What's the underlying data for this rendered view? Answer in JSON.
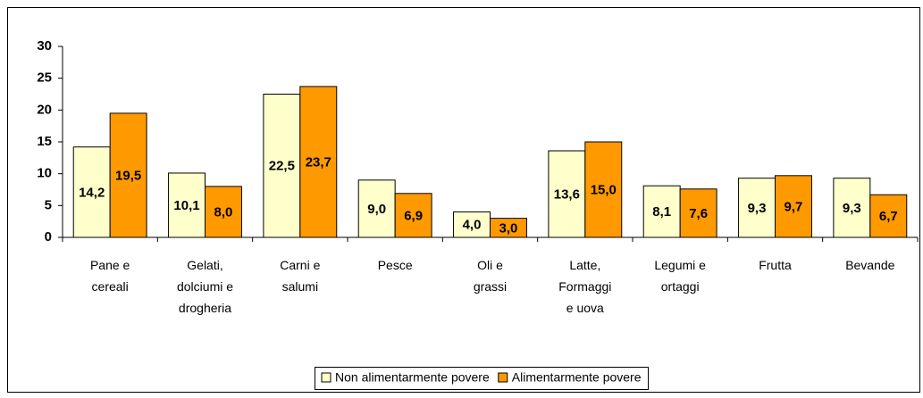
{
  "chart_data": {
    "type": "bar",
    "categories": [
      "Pane e cereali",
      "Gelati, dolciumi e drogheria",
      "Carni e salumi",
      "Pesce",
      "Oli e grassi",
      "Latte, Formaggi e uova",
      "Legumi e ortaggi",
      "Frutta",
      "Bevande"
    ],
    "series": [
      {
        "name": "Non alimentarmente povere",
        "color": "#ffffcc",
        "values": [
          14.2,
          10.1,
          22.5,
          9.0,
          4.0,
          13.6,
          8.1,
          9.3,
          9.3
        ],
        "value_labels": [
          "14,2",
          "10,1",
          "22,5",
          "9,0",
          "4,0",
          "13,6",
          "8,1",
          "9,3",
          "9,3"
        ]
      },
      {
        "name": "Alimentarmente povere",
        "color": "#ff9900",
        "values": [
          19.5,
          8.0,
          23.7,
          6.9,
          3.0,
          15.0,
          7.6,
          9.7,
          6.7
        ],
        "value_labels": [
          "19,5",
          "8,0",
          "23,7",
          "6,9",
          "3,0",
          "15,0",
          "7,6",
          "9,7",
          "6,7"
        ]
      }
    ],
    "ylim": [
      0,
      30
    ],
    "yticks": [
      0,
      5,
      10,
      15,
      20,
      25,
      30
    ],
    "grid": false,
    "legend": "bottom"
  }
}
